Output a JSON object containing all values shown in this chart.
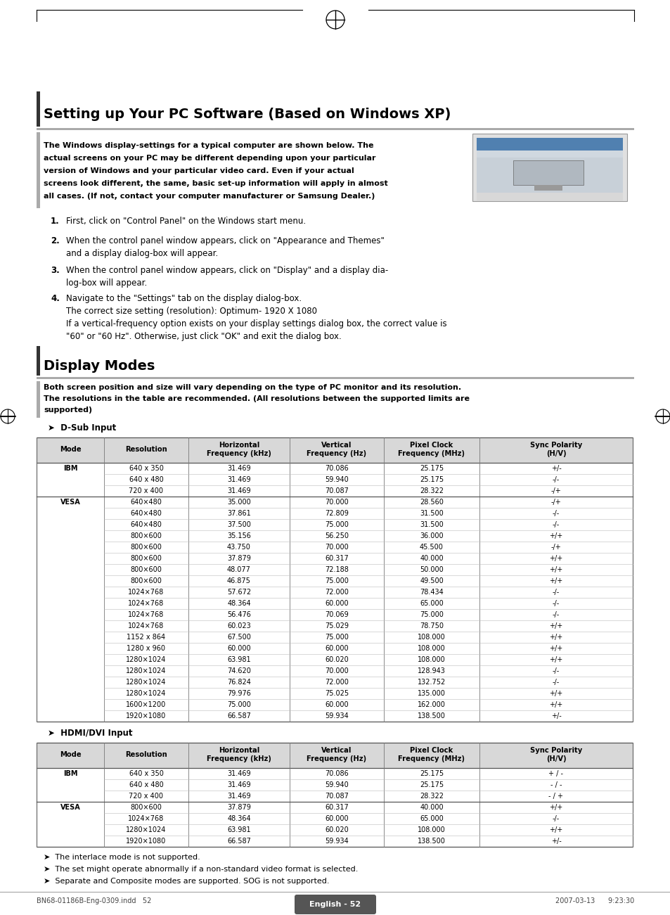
{
  "title": "Setting up Your PC Software (Based on Windows XP)",
  "intro_bold_lines": [
    "The Windows display-settings for a typical computer are shown below. The",
    "actual screens on your PC may be different depending upon your particular",
    "version of Windows and your particular video card. Even if your actual",
    "screens look different, the same, basic set-up information will apply in almost",
    "all cases. (If not, contact your computer manufacturer or Samsung Dealer.)"
  ],
  "step1": "First, click on \"Control Panel\" on the Windows start menu.",
  "step2_lines": [
    "When the control panel window appears, click on \"Appearance and Themes\"",
    "and a display dialog-box will appear."
  ],
  "step3_lines": [
    "When the control panel window appears, click on \"Display\" and a display dia-",
    "log-box will appear."
  ],
  "step4_lines": [
    "Navigate to the \"Settings\" tab on the display dialog-box.",
    "The correct size setting (resolution): Optimum- 1920 X 1080",
    "If a vertical-frequency option exists on your display settings dialog box, the correct value is",
    "\"60\" or \"60 Hz\". Otherwise, just click \"OK\" and exit the dialog box."
  ],
  "section2_title": "Display Modes",
  "display_intro_lines": [
    "Both screen position and size will vary depending on the type of PC monitor and its resolution.",
    "The resolutions in the table are recommended. (All resolutions between the supported limits are",
    "supported)"
  ],
  "dsub_label": "D-Sub Input",
  "hdmi_label": "HDMI/DVI Input",
  "table_headers": [
    "Mode",
    "Resolution",
    "Horizontal\nFrequency (kHz)",
    "Vertical\nFrequency (Hz)",
    "Pixel Clock\nFrequency (MHz)",
    "Sync Polarity\n(H/V)"
  ],
  "dsub_ibm_rows": [
    [
      "IBM",
      "640 x 350",
      "31.469",
      "70.086",
      "25.175",
      "+/-"
    ],
    [
      "",
      "640 x 480",
      "31.469",
      "59.940",
      "25.175",
      "-/-"
    ],
    [
      "",
      "720 x 400",
      "31.469",
      "70.087",
      "28.322",
      "-/+"
    ]
  ],
  "dsub_vesa_rows": [
    [
      "VESA",
      "640×480",
      "35.000",
      "70.000",
      "28.560",
      "-/+"
    ],
    [
      "",
      "640×480",
      "37.861",
      "72.809",
      "31.500",
      "-/-"
    ],
    [
      "",
      "640×480",
      "37.500",
      "75.000",
      "31.500",
      "-/-"
    ],
    [
      "",
      "800×600",
      "35.156",
      "56.250",
      "36.000",
      "+/+"
    ],
    [
      "",
      "800×600",
      "43.750",
      "70.000",
      "45.500",
      "-/+"
    ],
    [
      "",
      "800×600",
      "37.879",
      "60.317",
      "40.000",
      "+/+"
    ],
    [
      "",
      "800×600",
      "48.077",
      "72.188",
      "50.000",
      "+/+"
    ],
    [
      "",
      "800×600",
      "46.875",
      "75.000",
      "49.500",
      "+/+"
    ],
    [
      "",
      "1024×768",
      "57.672",
      "72.000",
      "78.434",
      "-/-"
    ],
    [
      "",
      "1024×768",
      "48.364",
      "60.000",
      "65.000",
      "-/-"
    ],
    [
      "",
      "1024×768",
      "56.476",
      "70.069",
      "75.000",
      "-/-"
    ],
    [
      "",
      "1024×768",
      "60.023",
      "75.029",
      "78.750",
      "+/+"
    ],
    [
      "",
      "1152 x 864",
      "67.500",
      "75.000",
      "108.000",
      "+/+"
    ],
    [
      "",
      "1280 x 960",
      "60.000",
      "60.000",
      "108.000",
      "+/+"
    ],
    [
      "",
      "1280×1024",
      "63.981",
      "60.020",
      "108.000",
      "+/+"
    ],
    [
      "",
      "1280×1024",
      "74.620",
      "70.000",
      "128.943",
      "-/-"
    ],
    [
      "",
      "1280×1024",
      "76.824",
      "72.000",
      "132.752",
      "-/-"
    ],
    [
      "",
      "1280×1024",
      "79.976",
      "75.025",
      "135.000",
      "+/+"
    ],
    [
      "",
      "1600×1200",
      "75.000",
      "60.000",
      "162.000",
      "+/+"
    ],
    [
      "",
      "1920×1080",
      "66.587",
      "59.934",
      "138.500",
      "+/-"
    ]
  ],
  "hdmi_ibm_rows": [
    [
      "IBM",
      "640 x 350",
      "31.469",
      "70.086",
      "25.175",
      "+ / -"
    ],
    [
      "",
      "640 x 480",
      "31.469",
      "59.940",
      "25.175",
      "- / -"
    ],
    [
      "",
      "720 x 400",
      "31.469",
      "70.087",
      "28.322",
      "- / +"
    ]
  ],
  "hdmi_vesa_rows": [
    [
      "VESA",
      "800×600",
      "37.879",
      "60.317",
      "40.000",
      "+/+"
    ],
    [
      "",
      "1024×768",
      "48.364",
      "60.000",
      "65.000",
      "-/-"
    ],
    [
      "",
      "1280×1024",
      "63.981",
      "60.020",
      "108.000",
      "+/+"
    ],
    [
      "",
      "1920×1080",
      "66.587",
      "59.934",
      "138.500",
      "+/-"
    ]
  ],
  "footnotes": [
    "➤  The interlace mode is not supported.",
    "➤  The set might operate abnormally if a non-standard video format is selected.",
    "➤  Separate and Composite modes are supported. SOG is not supported."
  ],
  "footer_left": "BN68-01186B-Eng-0309.indd   52",
  "footer_right": "2007-03-13      9:23:30",
  "page_num": "English - 52",
  "bg_color": "#ffffff"
}
